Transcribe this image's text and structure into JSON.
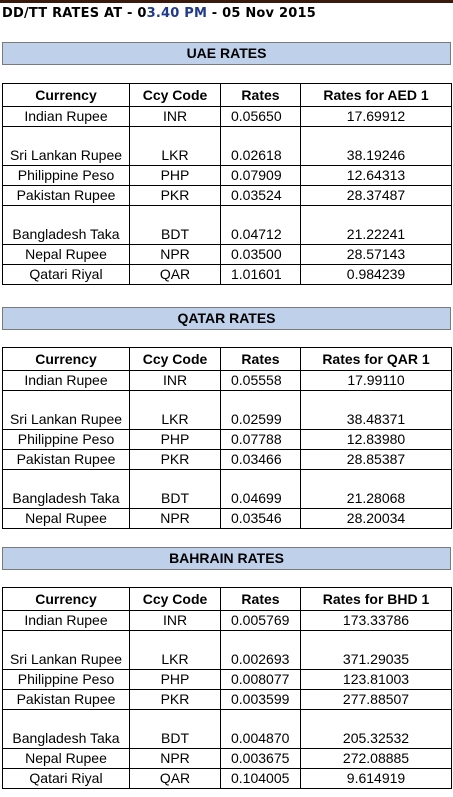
{
  "header": {
    "prefix": "DD/TT RATES AT - 0",
    "time": "3.40 PM",
    "suffix": " - 05 Nov 2015"
  },
  "columns_common": {
    "currency": "Currency",
    "code": "Ccy Code",
    "rates": "Rates"
  },
  "sections": [
    {
      "title": "UAE RATES",
      "rate_header": "Rates for AED 1",
      "rows": [
        {
          "currency": "Indian Rupee",
          "code": "INR",
          "rate": "0.05650",
          "per": "17.69912",
          "tall": false
        },
        {
          "currency": "Sri Lankan Rupee",
          "code": "LKR",
          "rate": "0.02618",
          "per": "38.19246",
          "tall": true
        },
        {
          "currency": "Philippine Peso",
          "code": "PHP",
          "rate": "0.07909",
          "per": "12.64313",
          "tall": false
        },
        {
          "currency": "Pakistan Rupee",
          "code": "PKR",
          "rate": "0.03524",
          "per": "28.37487",
          "tall": false
        },
        {
          "currency": "Bangladesh Taka",
          "code": "BDT",
          "rate": "0.04712",
          "per": "21.22241",
          "tall": true
        },
        {
          "currency": "Nepal Rupee",
          "code": "NPR",
          "rate": "0.03500",
          "per": "28.57143",
          "tall": false
        },
        {
          "currency": "Qatari Riyal",
          "code": "QAR",
          "rate": "1.01601",
          "per": "0.984239",
          "tall": false
        }
      ]
    },
    {
      "title": "QATAR RATES",
      "rate_header": "Rates for QAR 1",
      "rows": [
        {
          "currency": "Indian Rupee",
          "code": "INR",
          "rate": "0.05558",
          "per": "17.99110",
          "tall": false
        },
        {
          "currency": "Sri Lankan Rupee",
          "code": "LKR",
          "rate": "0.02599",
          "per": "38.48371",
          "tall": true
        },
        {
          "currency": "Philippine Peso",
          "code": "PHP",
          "rate": "0.07788",
          "per": "12.83980",
          "tall": false
        },
        {
          "currency": "Pakistan Rupee",
          "code": "PKR",
          "rate": "0.03466",
          "per": "28.85387",
          "tall": false
        },
        {
          "currency": "Bangladesh Taka",
          "code": "BDT",
          "rate": "0.04699",
          "per": "21.28068",
          "tall": true
        },
        {
          "currency": "Nepal Rupee",
          "code": "NPR",
          "rate": "0.03546",
          "per": "28.20034",
          "tall": false
        }
      ]
    },
    {
      "title": "BAHRAIN RATES",
      "rate_header": "Rates for  BHD 1",
      "rows": [
        {
          "currency": "Indian Rupee",
          "code": "INR",
          "rate": "0.005769",
          "per": "173.33786",
          "tall": false
        },
        {
          "currency": "Sri Lankan Rupee",
          "code": "LKR",
          "rate": "0.002693",
          "per": "371.29035",
          "tall": true
        },
        {
          "currency": "Philippine Peso",
          "code": "PHP",
          "rate": "0.008077",
          "per": "123.81003",
          "tall": false
        },
        {
          "currency": "Pakistan Rupee",
          "code": "PKR",
          "rate": "0.003599",
          "per": "277.88507",
          "tall": false
        },
        {
          "currency": "Bangladesh Taka",
          "code": "BDT",
          "rate": "0.004870",
          "per": "205.32532",
          "tall": true
        },
        {
          "currency": "Nepal Rupee",
          "code": "NPR",
          "rate": "0.003675",
          "per": "272.08885",
          "tall": false
        },
        {
          "currency": "Qatari Riyal",
          "code": "QAR",
          "rate": "0.104005",
          "per": "9.614919",
          "tall": false
        }
      ]
    }
  ]
}
